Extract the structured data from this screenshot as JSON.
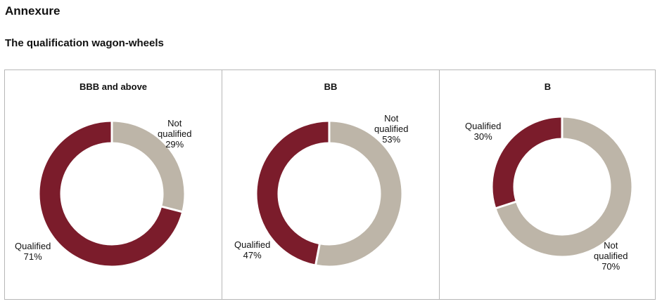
{
  "heading": "Annexure",
  "subheading": "The qualification wagon-wheels",
  "colors": {
    "qualified": "#7b1c2b",
    "not_qualified": "#bdb5a8",
    "border": "#b7b7b7"
  },
  "chart_data": [
    {
      "type": "pie",
      "title": "BBB and above",
      "slices": [
        {
          "label_line1": "Not",
          "label_line2": "qualified",
          "percent_text": "29%",
          "value": 29,
          "color": "#bdb5a8"
        },
        {
          "label_line1": "Qualified",
          "label_line2": "",
          "percent_text": "71%",
          "value": 71,
          "color": "#7b1c2b"
        }
      ]
    },
    {
      "type": "pie",
      "title": "BB",
      "slices": [
        {
          "label_line1": "Not",
          "label_line2": "qualified",
          "percent_text": "53%",
          "value": 53,
          "color": "#bdb5a8"
        },
        {
          "label_line1": "Qualified",
          "label_line2": "",
          "percent_text": "47%",
          "value": 47,
          "color": "#7b1c2b"
        }
      ]
    },
    {
      "type": "pie",
      "title": "B",
      "slices": [
        {
          "label_line1": "Not",
          "label_line2": "qualified",
          "percent_text": "70%",
          "value": 70,
          "color": "#bdb5a8"
        },
        {
          "label_line1": "Qualified",
          "label_line2": "",
          "percent_text": "30%",
          "value": 30,
          "color": "#7b1c2b"
        }
      ]
    }
  ]
}
